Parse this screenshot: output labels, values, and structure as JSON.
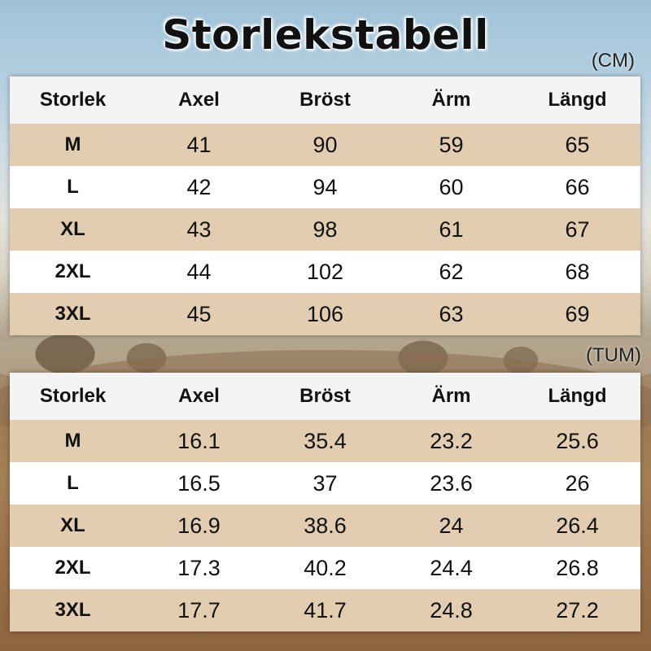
{
  "title": "Storlekstabell",
  "tables": [
    {
      "unit": "(CM)",
      "headers": [
        "Storlek",
        "Axel",
        "Bröst",
        "Ärm",
        "Längd"
      ],
      "rows": [
        [
          "M",
          "41",
          "90",
          "59",
          "65"
        ],
        [
          "L",
          "42",
          "94",
          "60",
          "66"
        ],
        [
          "XL",
          "43",
          "98",
          "61",
          "67"
        ],
        [
          "2XL",
          "44",
          "102",
          "62",
          "68"
        ],
        [
          "3XL",
          "45",
          "106",
          "63",
          "69"
        ]
      ]
    },
    {
      "unit": "(TUM)",
      "headers": [
        "Storlek",
        "Axel",
        "Bröst",
        "Ärm",
        "Längd"
      ],
      "rows": [
        [
          "M",
          "16.1",
          "35.4",
          "23.2",
          "25.6"
        ],
        [
          "L",
          "16.5",
          "37",
          "23.6",
          "26"
        ],
        [
          "XL",
          "16.9",
          "38.6",
          "24",
          "26.4"
        ],
        [
          "2XL",
          "17.3",
          "40.2",
          "24.4",
          "26.8"
        ],
        [
          "3XL",
          "17.7",
          "41.7",
          "24.8",
          "27.2"
        ]
      ]
    }
  ],
  "colors": {
    "header_row": "#f4f4f4",
    "shaded_row": "#e3cdb0",
    "plain_row": "#ffffff"
  }
}
